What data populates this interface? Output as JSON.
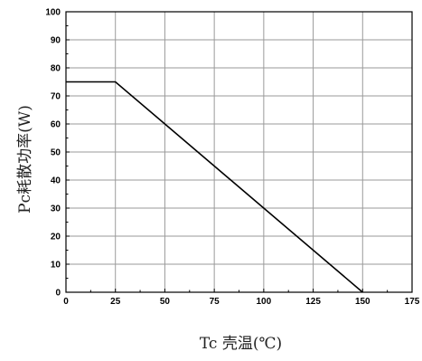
{
  "chart_data": {
    "type": "line",
    "xlabel": "Tc 壳温(℃)",
    "ylabel": "Pc耗散功率(W)",
    "xlim": [
      0,
      175
    ],
    "ylim": [
      0,
      100
    ],
    "x_ticks": [
      "0",
      "25",
      "50",
      "75",
      "100",
      "125",
      "150",
      "175"
    ],
    "y_ticks": [
      "0",
      "10",
      "20",
      "30",
      "40",
      "50",
      "60",
      "70",
      "80",
      "90",
      "100"
    ],
    "grid": true,
    "series": [
      {
        "x": [
          0,
          25,
          150
        ],
        "y": [
          75,
          75,
          0
        ]
      }
    ]
  }
}
